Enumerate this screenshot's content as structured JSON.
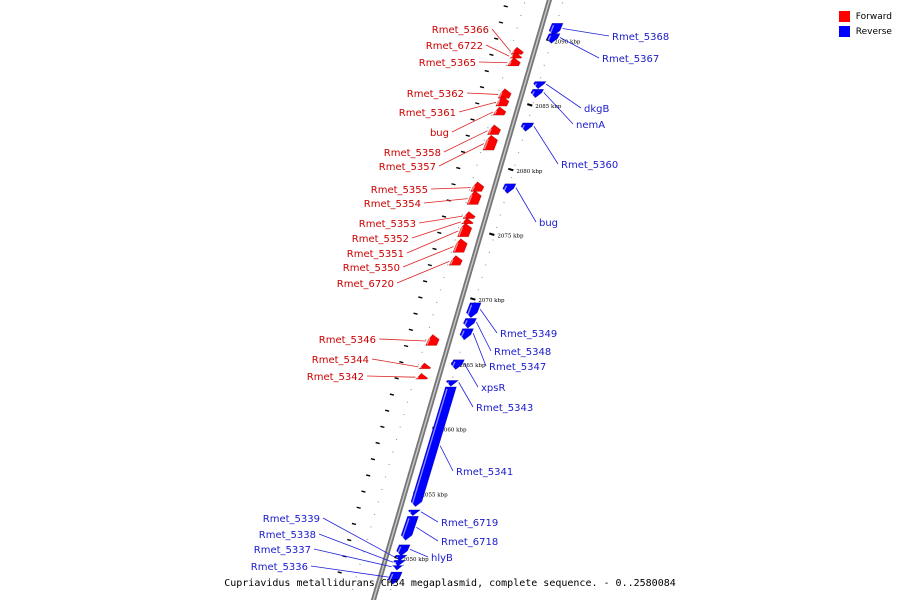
{
  "legend": {
    "forward": {
      "label": "Forward",
      "color": "#ff0000"
    },
    "reverse": {
      "label": "Reverse",
      "color": "#0000ff"
    }
  },
  "caption": "Cupriavidus metallidurans CH34 megaplasmid, complete sequence. - 0..2580084",
  "axis": {
    "unit": "kbp",
    "ticks": [
      2090,
      2085,
      2080,
      2075,
      2070,
      2065,
      2060,
      2055,
      2050
    ]
  },
  "genes": [
    {
      "name": "Rmet_5368",
      "strand": "reverse",
      "start_kbp": 2090.6,
      "end_kbp": 2091.4
    },
    {
      "name": "Rmet_5367",
      "strand": "reverse",
      "start_kbp": 2090.0,
      "end_kbp": 2090.6
    },
    {
      "name": "Rmet_5366",
      "strand": "forward",
      "start_kbp": 2089.0,
      "end_kbp": 2089.4
    },
    {
      "name": "Rmet_6722",
      "strand": "forward",
      "start_kbp": 2088.7,
      "end_kbp": 2089.0
    },
    {
      "name": "Rmet_5365",
      "strand": "forward",
      "start_kbp": 2088.1,
      "end_kbp": 2088.6
    },
    {
      "name": "dkgB",
      "strand": "reverse",
      "start_kbp": 2086.5,
      "end_kbp": 2086.9
    },
    {
      "name": "nemA",
      "strand": "reverse",
      "start_kbp": 2085.8,
      "end_kbp": 2086.3
    },
    {
      "name": "Rmet_5362",
      "strand": "forward",
      "start_kbp": 2085.6,
      "end_kbp": 2086.2
    },
    {
      "name": "Rmet_5361",
      "strand": "forward",
      "start_kbp": 2085.0,
      "end_kbp": 2085.6
    },
    {
      "name": "bug",
      "strand": "forward",
      "start_kbp": 2084.3,
      "end_kbp": 2084.8
    },
    {
      "name": "Rmet_5360",
      "strand": "reverse",
      "start_kbp": 2083.2,
      "end_kbp": 2083.7
    },
    {
      "name": "Rmet_5358",
      "strand": "forward",
      "start_kbp": 2082.8,
      "end_kbp": 2083.4
    },
    {
      "name": "Rmet_5357",
      "strand": "forward",
      "start_kbp": 2081.6,
      "end_kbp": 2082.6
    },
    {
      "name": "bug",
      "strand": "reverse",
      "start_kbp": 2078.4,
      "end_kbp": 2079.0
    },
    {
      "name": "Rmet_5355",
      "strand": "forward",
      "start_kbp": 2078.4,
      "end_kbp": 2079.0
    },
    {
      "name": "Rmet_5354",
      "strand": "forward",
      "start_kbp": 2077.4,
      "end_kbp": 2078.3
    },
    {
      "name": "Rmet_5353",
      "strand": "forward",
      "start_kbp": 2076.3,
      "end_kbp": 2076.7
    },
    {
      "name": "Rmet_5352",
      "strand": "forward",
      "start_kbp": 2075.9,
      "end_kbp": 2076.2
    },
    {
      "name": "Rmet_5351",
      "strand": "forward",
      "start_kbp": 2074.9,
      "end_kbp": 2075.8
    },
    {
      "name": "Rmet_5350",
      "strand": "forward",
      "start_kbp": 2073.7,
      "end_kbp": 2074.6
    },
    {
      "name": "Rmet_6720",
      "strand": "forward",
      "start_kbp": 2072.7,
      "end_kbp": 2073.3
    },
    {
      "name": "Rmet_5349",
      "strand": "reverse",
      "start_kbp": 2068.8,
      "end_kbp": 2069.8
    },
    {
      "name": "Rmet_5348",
      "strand": "reverse",
      "start_kbp": 2068.0,
      "end_kbp": 2068.6
    },
    {
      "name": "Rmet_5347",
      "strand": "reverse",
      "start_kbp": 2067.1,
      "end_kbp": 2067.8
    },
    {
      "name": "Rmet_5346",
      "strand": "forward",
      "start_kbp": 2066.5,
      "end_kbp": 2067.2
    },
    {
      "name": "xpsR",
      "strand": "reverse",
      "start_kbp": 2064.8,
      "end_kbp": 2065.4
    },
    {
      "name": "Rmet_5344",
      "strand": "forward",
      "start_kbp": 2064.7,
      "end_kbp": 2065.0
    },
    {
      "name": "Rmet_5342",
      "strand": "forward",
      "start_kbp": 2063.9,
      "end_kbp": 2064.2
    },
    {
      "name": "Rmet_5343",
      "strand": "reverse",
      "start_kbp": 2063.5,
      "end_kbp": 2063.8
    },
    {
      "name": "Rmet_5341",
      "strand": "reverse",
      "start_kbp": 2054.2,
      "end_kbp": 2063.3
    },
    {
      "name": "Rmet_6719",
      "strand": "reverse",
      "start_kbp": 2053.5,
      "end_kbp": 2053.8
    },
    {
      "name": "Rmet_6718",
      "strand": "reverse",
      "start_kbp": 2051.6,
      "end_kbp": 2053.3
    },
    {
      "name": "hlyB",
      "strand": "reverse",
      "start_kbp": 2050.4,
      "end_kbp": 2051.1
    },
    {
      "name": "Rmet_5339",
      "strand": "reverse",
      "start_kbp": 2050.0,
      "end_kbp": 2050.3
    },
    {
      "name": "Rmet_5338",
      "strand": "reverse",
      "start_kbp": 2049.6,
      "end_kbp": 2049.9
    },
    {
      "name": "Rmet_5337",
      "strand": "reverse",
      "start_kbp": 2049.3,
      "end_kbp": 2049.5
    },
    {
      "name": "Rmet_5336",
      "strand": "reverse",
      "start_kbp": 2048.2,
      "end_kbp": 2049.0
    }
  ]
}
